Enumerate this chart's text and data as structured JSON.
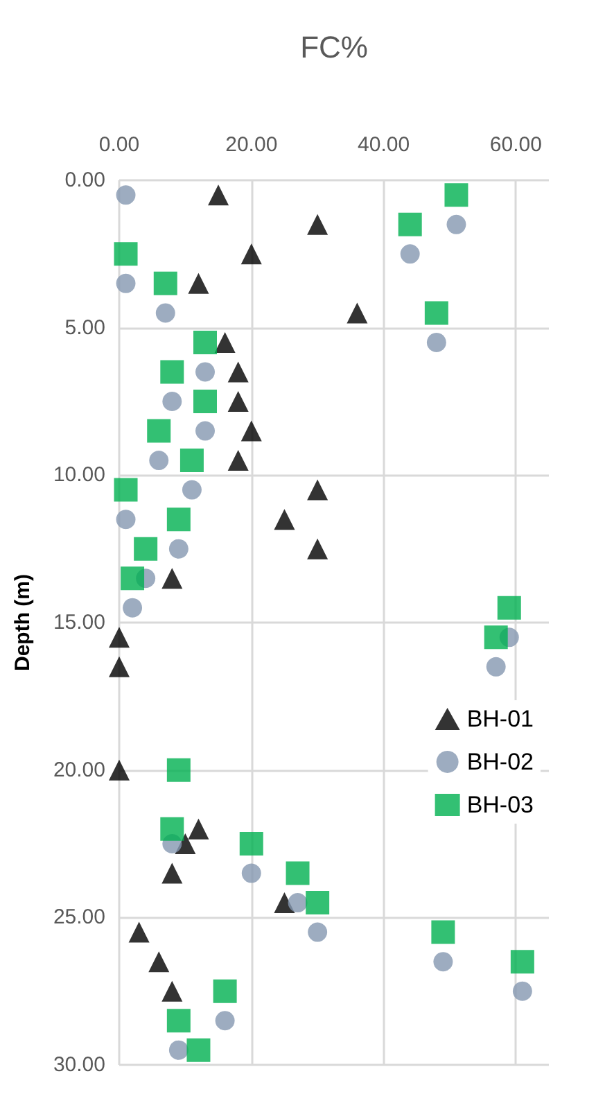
{
  "chart_data": {
    "type": "scatter",
    "title": "FC%",
    "ylabel": "Depth (m)",
    "xlim": [
      0,
      65
    ],
    "xticks": [
      {
        "value": 0,
        "label": "0.00"
      },
      {
        "value": 20,
        "label": "20.00"
      },
      {
        "value": 40,
        "label": "40.00"
      },
      {
        "value": 60,
        "label": "60.00"
      }
    ],
    "ylim": [
      30,
      0
    ],
    "yticks": [
      {
        "value": 0,
        "label": "0.00"
      },
      {
        "value": 5,
        "label": "5.00"
      },
      {
        "value": 10,
        "label": "10.00"
      },
      {
        "value": 15,
        "label": "15.00"
      },
      {
        "value": 20,
        "label": "20.00"
      },
      {
        "value": 25,
        "label": "25.00"
      },
      {
        "value": 30,
        "label": "30.00"
      }
    ],
    "grid": true,
    "legend": "right",
    "series": [
      {
        "name": "BH-01",
        "color": "#000000",
        "marker": "triangle",
        "x": [
          15,
          30,
          20,
          12,
          36,
          16,
          18,
          18,
          20,
          18,
          30,
          25,
          30,
          8,
          null,
          0,
          0,
          0,
          12,
          10,
          8,
          25,
          3,
          6,
          8,
          null
        ],
        "values": [
          0.5,
          1.5,
          2.5,
          3.5,
          4.5,
          5.5,
          6.5,
          7.5,
          8.5,
          9.5,
          10.5,
          11.5,
          12.5,
          13.5,
          null,
          15.5,
          16.5,
          20,
          22,
          22.5,
          23.5,
          24.5,
          25.5,
          26.5,
          27.5,
          null
        ]
      },
      {
        "name": "BH-02",
        "color": "#8497b0",
        "marker": "circle",
        "x": [
          1,
          51,
          44,
          1,
          7,
          48,
          13,
          8,
          13,
          6,
          11,
          1,
          9,
          4,
          2,
          59,
          57,
          8,
          20,
          27,
          30,
          49,
          61,
          16,
          9
        ],
        "values": [
          0.5,
          1.5,
          2.5,
          3.5,
          4.5,
          5.5,
          6.5,
          7.5,
          8.5,
          9.5,
          10.5,
          11.5,
          12.5,
          13.5,
          14.5,
          15.5,
          16.5,
          22.5,
          23.5,
          24.5,
          25.5,
          26.5,
          27.5,
          28.5,
          29.5
        ]
      },
      {
        "name": "BH-03",
        "color": "#00b050",
        "marker": "square",
        "x": [
          51,
          44,
          1,
          7,
          48,
          13,
          8,
          13,
          6,
          11,
          1,
          9,
          4,
          2,
          59,
          57,
          9,
          8,
          20,
          27,
          30,
          49,
          61,
          16,
          9,
          12
        ],
        "values": [
          0.5,
          1.5,
          2.5,
          3.5,
          4.5,
          5.5,
          6.5,
          7.5,
          8.5,
          9.5,
          10.5,
          11.5,
          12.5,
          13.5,
          14.5,
          15.5,
          20,
          22,
          22.5,
          23.5,
          24.5,
          25.5,
          26.5,
          27.5,
          28.5,
          29.5
        ]
      }
    ]
  }
}
